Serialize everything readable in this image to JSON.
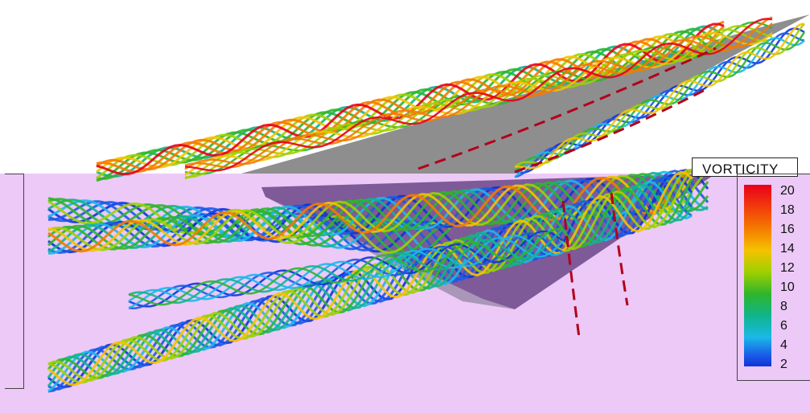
{
  "legend": {
    "title": "VORTICITY",
    "ticks": [
      "20",
      "18",
      "16",
      "14",
      "12",
      "10",
      "8",
      "6",
      "4",
      "2"
    ]
  },
  "colors": {
    "upper_background": "#ffffff",
    "lower_background": "#ecc9f7",
    "upper_plate": "#8e8e8e",
    "lower_plate": "#7e5a98"
  },
  "colormap_name": "rainbow-vorticity"
}
